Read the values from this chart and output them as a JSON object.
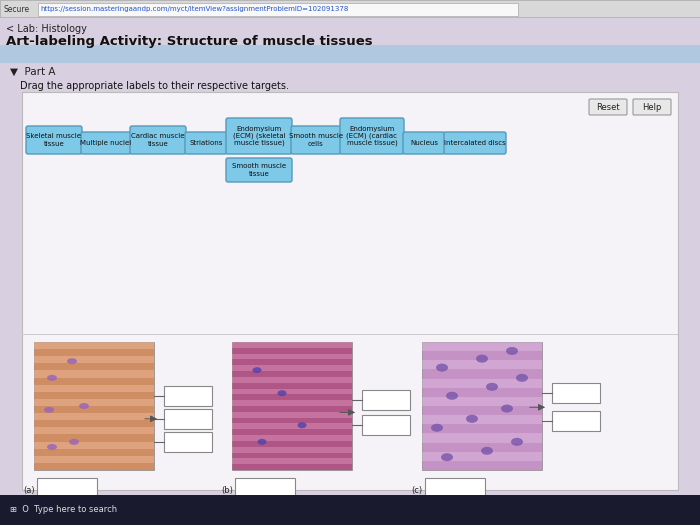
{
  "title": "Art-labeling Activity: Structure of muscle tissues",
  "subtitle": "< Lab: Histology",
  "url": "https://session.masteringaandp.com/myct/itemView?assignmentProblemID=102091378",
  "part_label": "Part A",
  "instruction": "Drag the appropriate labels to their respective targets.",
  "bg_outer": "#c8c8d8",
  "bg_inner": "#d8d0e0",
  "panel_bg": "#f0eef4",
  "label_bg": "#7ec8e8",
  "label_border": "#5599bb",
  "labels_row1": [
    "Skeletal muscle\ntissue",
    "Multiple nuclei",
    "Cardiac muscle\ntissue",
    "Striations",
    "Endomysium\n(ECM) (skeletal\nmuscle tissue)",
    "Smooth muscle\ncells",
    "Endomysium\n(ECM) (cardiac\nmuscle tissue)",
    "Nucleus",
    "Intercalated discs"
  ],
  "labels_row2": [
    "Smooth muscle\ntissue"
  ],
  "img_a_base": "#d4956a",
  "img_a_stripe1": "#cc8860",
  "img_a_stripe2": "#e8b090",
  "img_b_base": "#bb6090",
  "img_b_stripe1": "#a85080",
  "img_b_stripe2": "#cc80a8",
  "img_c_base": "#cc99cc",
  "img_c_stripe1": "#bb88bb",
  "img_c_stripe2": "#ddbbdd",
  "nucleus_color_a": "#9966bb",
  "nucleus_color_b": "#5544aa",
  "nucleus_color_c": "#7755aa"
}
